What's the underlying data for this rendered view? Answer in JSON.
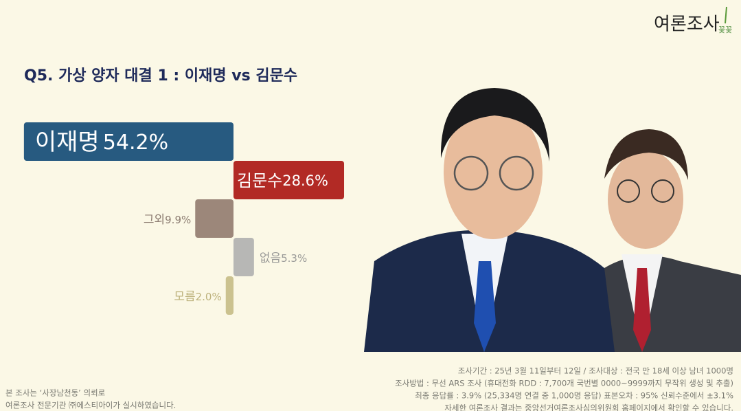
{
  "logo": {
    "main": "여론조사",
    "sub": "꽃꽃"
  },
  "chart_data": {
    "type": "bar",
    "title": "Q5. 가상 양자 대결 1 : 이재명 vs 김문수",
    "categories": [
      "이재명",
      "김문수",
      "그외",
      "없음",
      "모름"
    ],
    "values": [
      54.2,
      28.6,
      9.9,
      5.3,
      2.0
    ],
    "value_labels": [
      "54.2%",
      "28.6%",
      "9.9%",
      "5.3%",
      "2.0%"
    ],
    "colors": [
      "#275a80",
      "#b22a25",
      "#9c877a",
      "#b7b7b5",
      "#cbc28f"
    ]
  },
  "footer": {
    "left": [
      "본 조사는 ‘사장남천동’ 의뢰로",
      "여론조사 전문기관 ㈜에스티아이가 실시하였습니다."
    ],
    "right": [
      "조사기간 : 25년 3월 11일부터 12일 / 조사대상 : 전국 만 18세 이상 남녀 1000명",
      "조사방법 : 무선 ARS 조사 (휴대전화 RDD : 7,700개 국번별 0000~9999까지 무작위 생성 및 추출)",
      "최종 응답률 : 3.9% (25,334명 연결 중 1,000명 응답) 표본오차 : 95% 신뢰수준에서 ±3.1%",
      "자세한 여론조사 결과는 중앙선거여론조사심의위원회 홈페이지에서 확인할 수 있습니다."
    ]
  }
}
